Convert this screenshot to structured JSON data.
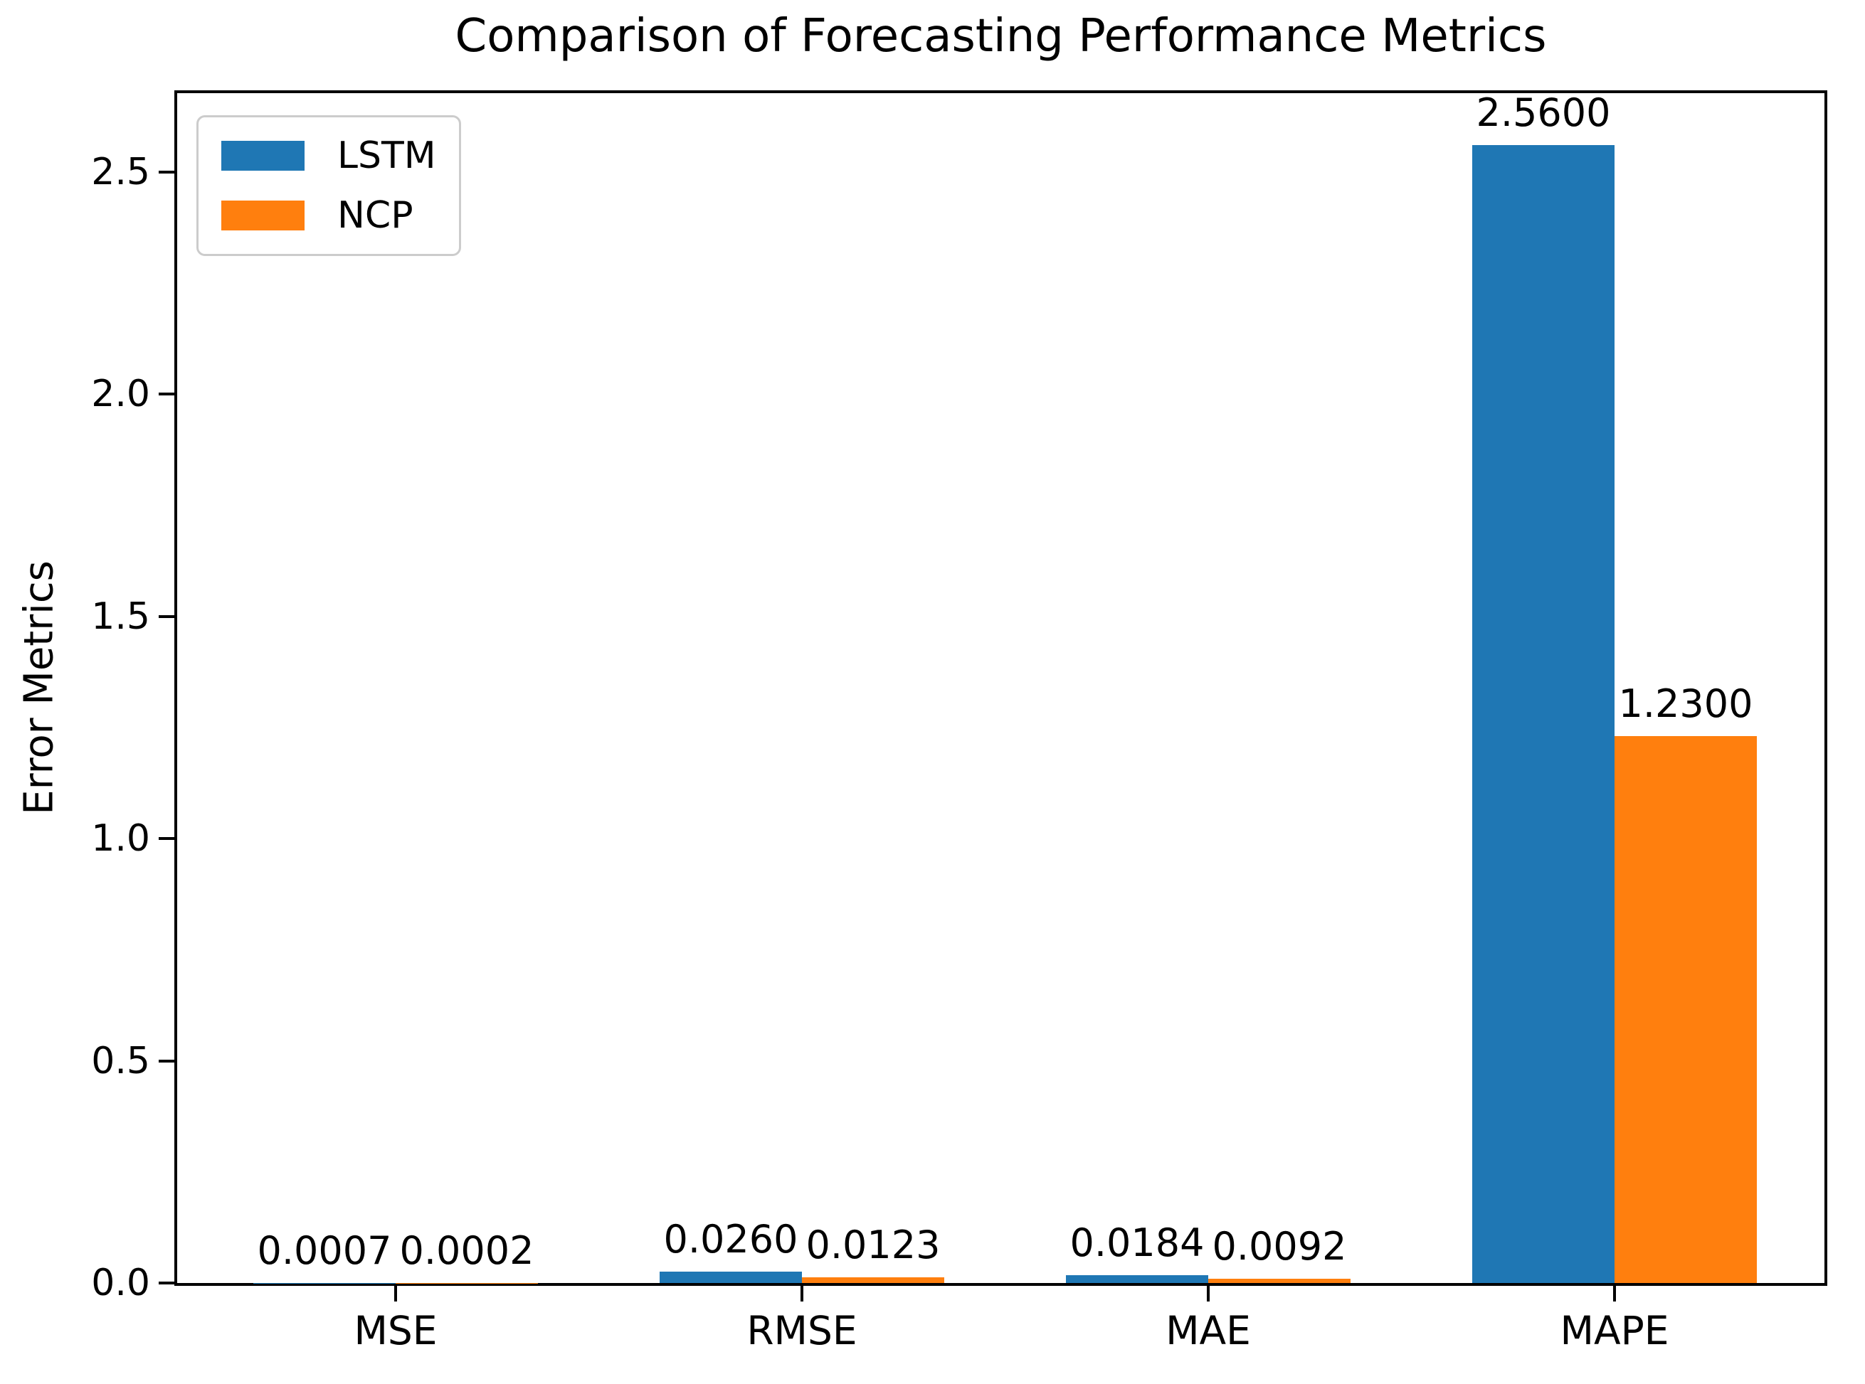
{
  "chart_data": {
    "type": "bar",
    "title": "Comparison of Forecasting Performance Metrics",
    "xlabel": "",
    "ylabel": "Error Metrics",
    "categories": [
      "MSE",
      "RMSE",
      "MAE",
      "MAPE"
    ],
    "series": [
      {
        "name": "LSTM",
        "color": "#1f77b4",
        "values": [
          0.0007,
          0.026,
          0.0184,
          2.56
        ],
        "value_labels": [
          "0.0007",
          "0.0260",
          "0.0184",
          "2.5600"
        ]
      },
      {
        "name": "NCP",
        "color": "#ff7f0e",
        "values": [
          0.0002,
          0.0123,
          0.0092,
          1.23
        ],
        "value_labels": [
          "0.0002",
          "0.0123",
          "0.0092",
          "1.2300"
        ]
      }
    ],
    "ylim": [
      0,
      2.69
    ],
    "yticks": [
      0.0,
      0.5,
      1.0,
      1.5,
      2.0,
      2.5
    ],
    "ytick_labels": [
      "0.0",
      "0.5",
      "1.0",
      "1.5",
      "2.0",
      "2.5"
    ],
    "legend_position": "upper left",
    "grid": false
  }
}
